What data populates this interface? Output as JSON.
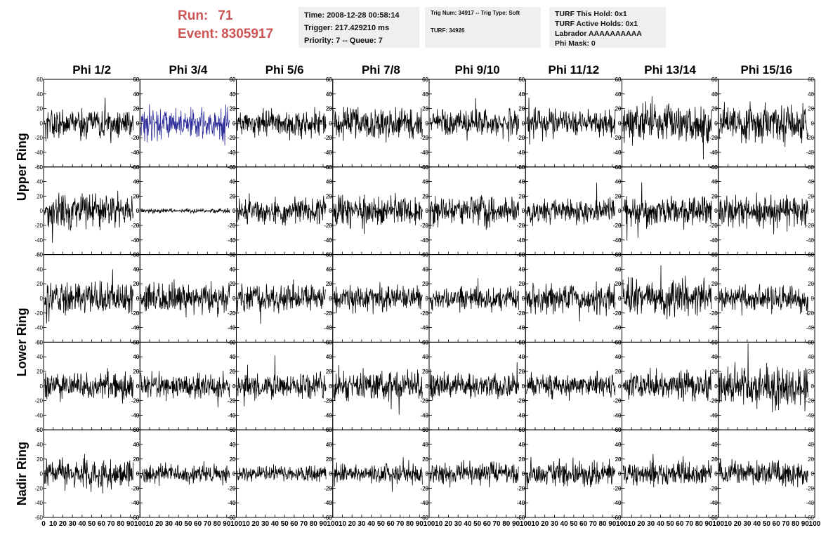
{
  "header": {
    "run_label": "Run:",
    "run_value": "71",
    "event_label": "Event:",
    "event_value": "8305917"
  },
  "info_time": {
    "time": "Time: 2008-12-28 00:58:14",
    "trigger": "Trigger: 217.429210 ms",
    "priority": "Priority: 7 -- Queue: 7"
  },
  "info_trig": {
    "trig": "Trig Num: 34917 -- Trig Type: Soft",
    "turf": "TURF: 34926"
  },
  "info_turf": {
    "this_hold": "TURF This Hold: 0x1",
    "active_holds": "TURF Active Holds: 0x1",
    "labrador": "Labrador AAAAAAAAAA",
    "phi_mask": "Phi Mask: 0"
  },
  "chart_data": {
    "type": "line",
    "columns": [
      "Phi 1/2",
      "Phi 3/4",
      "Phi 5/6",
      "Phi 7/8",
      "Phi 9/10",
      "Phi 11/12",
      "Phi 13/14",
      "Phi 15/16"
    ],
    "ring_labels": [
      {
        "text": "Upper Ring",
        "rows": [
          0,
          1
        ]
      },
      {
        "text": "Lower Ring",
        "rows": [
          2,
          3
        ]
      },
      {
        "text": "Nadir Ring",
        "rows": [
          4
        ]
      }
    ],
    "rows": 5,
    "ylim": [
      -60,
      60
    ],
    "yticks": [
      -60,
      -40,
      -20,
      0,
      20,
      40,
      60
    ],
    "xlim": [
      0,
      100
    ],
    "xticks": [
      0,
      10,
      20,
      30,
      40,
      50,
      60,
      70,
      80,
      90,
      100
    ],
    "samples_per_trace": 260,
    "default_color": "#000000",
    "highlight_color": "#2b2b9a",
    "highlight_panels": [
      [
        0,
        1
      ]
    ],
    "amplitudes": [
      [
        14,
        15,
        13,
        15,
        13,
        13,
        17,
        17
      ],
      [
        16,
        2,
        12,
        14,
        14,
        12,
        14,
        16
      ],
      [
        15,
        14,
        14,
        12,
        11,
        13,
        17,
        12
      ],
      [
        13,
        12,
        12,
        14,
        12,
        11,
        13,
        19
      ],
      [
        14,
        9,
        7,
        10,
        10,
        12,
        11,
        11
      ]
    ]
  }
}
